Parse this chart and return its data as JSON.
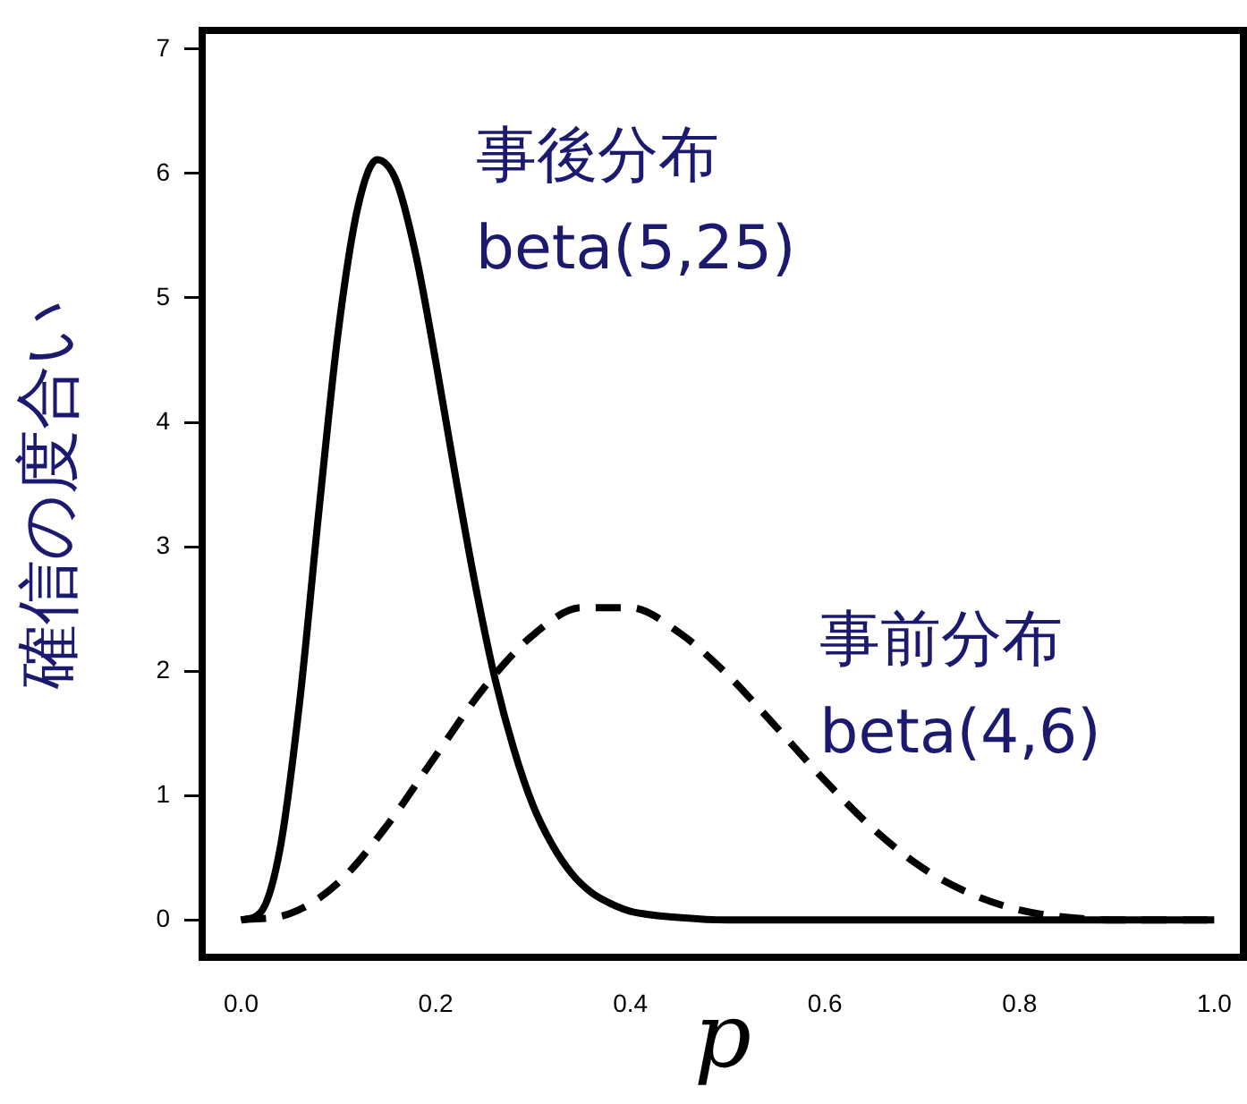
{
  "chart_data": {
    "type": "line",
    "xlabel": "p",
    "ylabel": "確信の度合い",
    "xlim": [
      -0.04,
      1.03
    ],
    "ylim": [
      -0.3,
      7.15
    ],
    "xticks": [
      {
        "value": 0,
        "label": "0.0"
      },
      {
        "value": 0.2,
        "label": "0.2"
      },
      {
        "value": 0.4,
        "label": "0.4"
      },
      {
        "value": 0.6,
        "label": "0.6"
      },
      {
        "value": 0.8,
        "label": "0.8"
      },
      {
        "value": 1,
        "label": "1.0"
      }
    ],
    "yticks": [
      0,
      1,
      2,
      3,
      4,
      5,
      6,
      7
    ],
    "grid": false,
    "legend": false,
    "marker": "none",
    "series": [
      {
        "name": "事後分布\nbeta(5,25)",
        "color": "#000000",
        "line_style": "solid",
        "x": [
          0,
          0.02,
          0.04,
          0.06,
          0.08,
          0.1,
          0.12,
          0.14,
          0.16,
          0.18,
          0.2,
          0.22,
          0.24,
          0.26,
          0.28,
          0.3,
          0.32,
          0.34,
          0.36,
          0.38,
          0.4,
          0.45,
          0.5,
          0.6,
          0.8,
          1
        ],
        "values": [
          0,
          0.06,
          0.57,
          1.74,
          3.29,
          4.74,
          5.73,
          6.11,
          5.93,
          5.33,
          4.49,
          3.58,
          2.72,
          1.97,
          1.38,
          0.92,
          0.6,
          0.37,
          0.22,
          0.13,
          0.07,
          0.02,
          0,
          0,
          0,
          0
        ]
      },
      {
        "name": "事前分布\nbeta(4,6)",
        "color": "#000000",
        "line_style": "dashed",
        "x": [
          0,
          0.05,
          0.1,
          0.15,
          0.2,
          0.25,
          0.3,
          0.35,
          0.4,
          0.45,
          0.5,
          0.55,
          0.6,
          0.65,
          0.7,
          0.75,
          0.8,
          0.85,
          0.9,
          0.95,
          1
        ],
        "values": [
          0,
          0.05,
          0.3,
          0.76,
          1.32,
          1.87,
          2.29,
          2.51,
          2.51,
          2.31,
          1.97,
          1.55,
          1.12,
          0.73,
          0.42,
          0.21,
          0.08,
          0.02,
          0,
          0,
          0
        ]
      }
    ]
  }
}
